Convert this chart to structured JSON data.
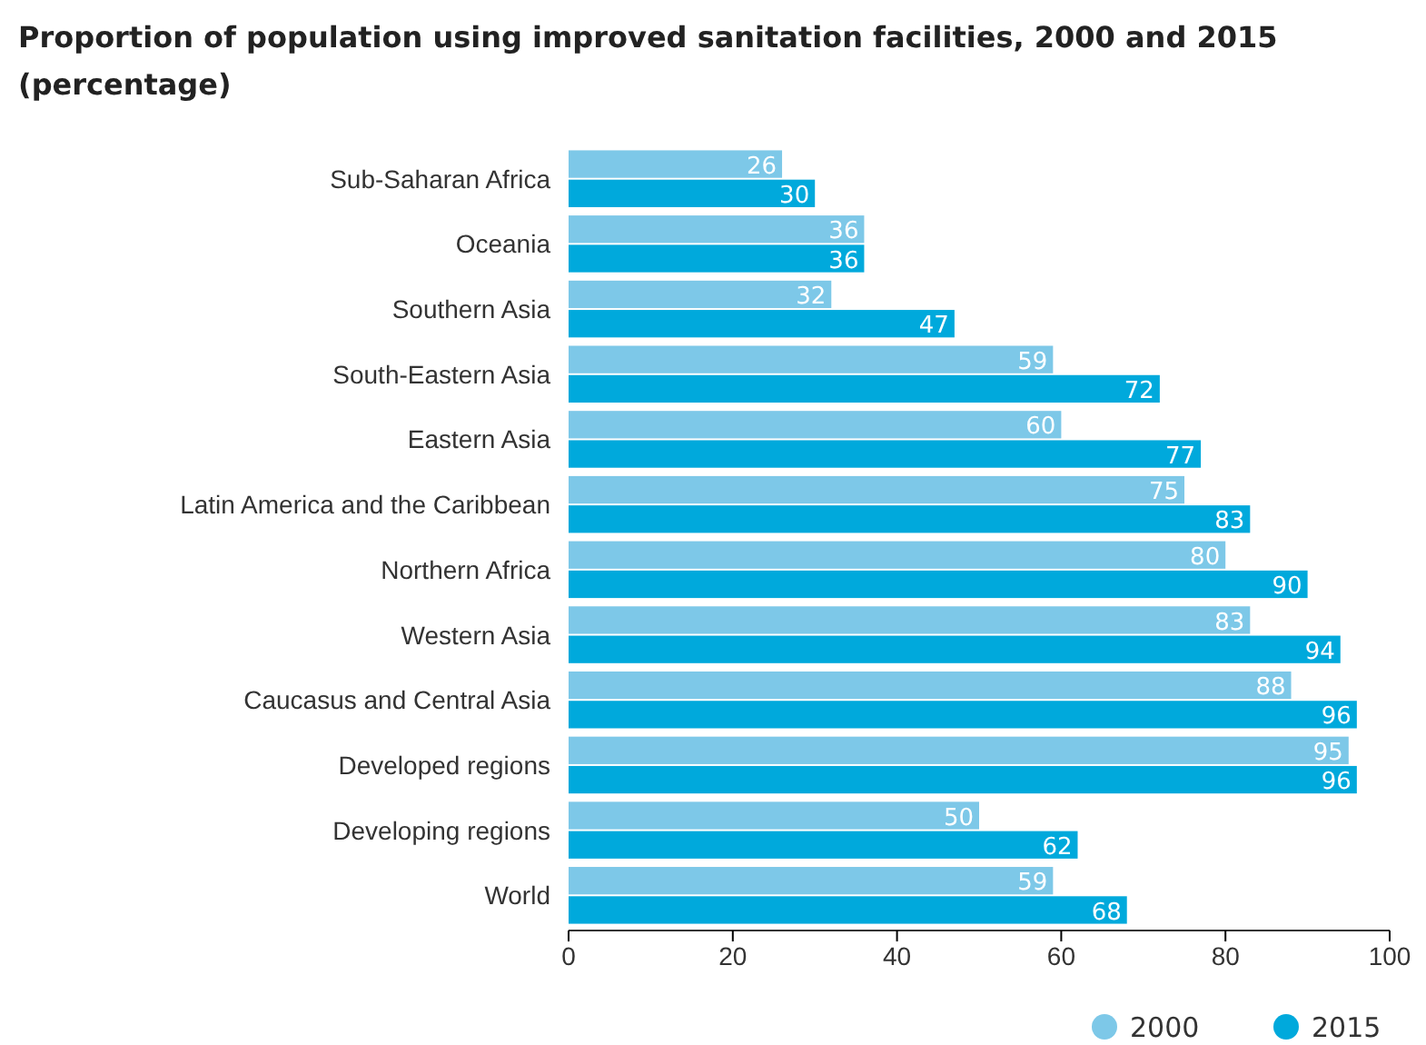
{
  "chart_data": {
    "type": "bar",
    "orientation": "horizontal",
    "title": "Proportion of population using improved sanitation facilities, 2000 and 2015",
    "subtitle": "(percentage)",
    "categories": [
      "Sub-Saharan Africa",
      "Oceania",
      "Southern Asia",
      "South-Eastern Asia",
      "Eastern Asia",
      "Latin America and the Caribbean",
      "Northern Africa",
      "Western Asia",
      "Caucasus and Central Asia",
      "Developed regions",
      "Developing regions",
      "World"
    ],
    "series": [
      {
        "name": "2000",
        "color": "#7dc8e8",
        "values": [
          26,
          36,
          32,
          59,
          60,
          75,
          80,
          83,
          88,
          95,
          50,
          59
        ]
      },
      {
        "name": "2015",
        "color": "#00a9dc",
        "values": [
          30,
          36,
          47,
          72,
          77,
          83,
          90,
          94,
          96,
          96,
          62,
          68
        ]
      }
    ],
    "xlim": [
      0,
      100
    ],
    "xticks": [
      0,
      20,
      40,
      60,
      80,
      100
    ],
    "data_labels": true,
    "grid": false,
    "legend": "bottom right"
  }
}
